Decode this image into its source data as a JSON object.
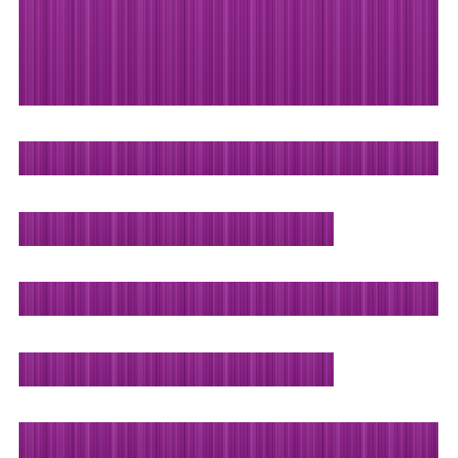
{
  "icon": {
    "name": "text-align-left-icon",
    "accent_color": "#8a1f86",
    "background_color": "#ffffff",
    "lines": [
      {
        "name": "header-line",
        "relative_length": 1.0
      },
      {
        "name": "text-line",
        "relative_length": 1.0
      },
      {
        "name": "text-line",
        "relative_length": 0.75
      },
      {
        "name": "text-line",
        "relative_length": 1.0
      },
      {
        "name": "text-line",
        "relative_length": 0.75
      },
      {
        "name": "text-line",
        "relative_length": 1.0
      }
    ]
  }
}
